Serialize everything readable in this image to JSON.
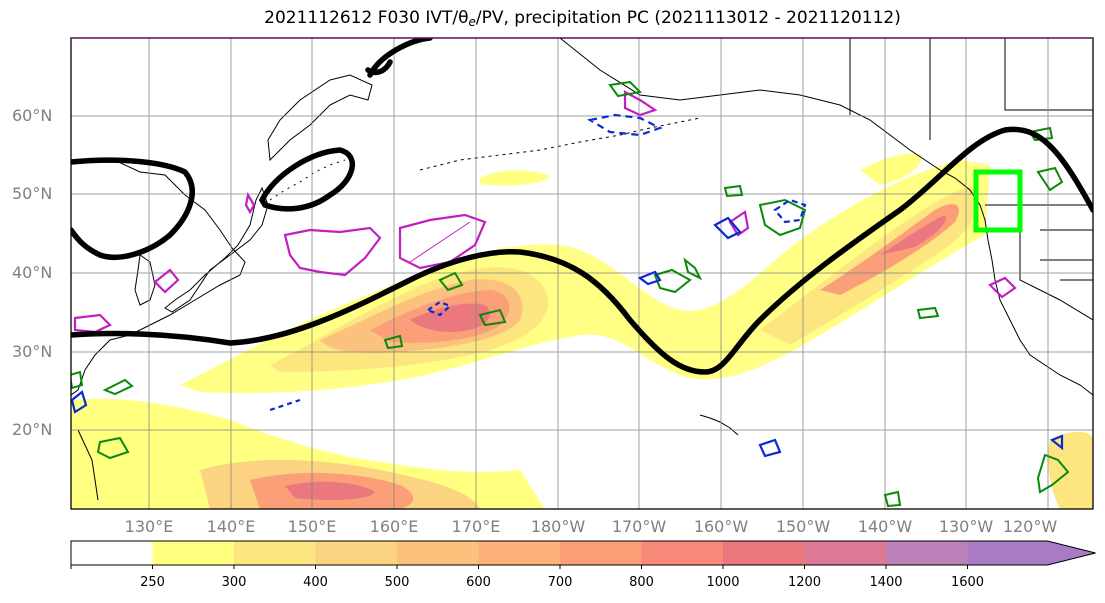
{
  "title": {
    "main": "2021112612 F030 IVT/",
    "theta": "θ",
    "theta_sub": "e",
    "rest": "/PV, precipitation PC (2021113012 - 2021120112)"
  },
  "map": {
    "lat_labels": [
      "60°N",
      "50°N",
      "40°N",
      "30°N",
      "20°N"
    ],
    "lon_labels": [
      "130°E",
      "140°E",
      "150°E",
      "160°E",
      "170°E",
      "180°W",
      "170°W",
      "160°W",
      "150°W",
      "140°W",
      "130°W",
      "120°W"
    ],
    "colors": {
      "jet_contour": "#000000",
      "pv_positive": "#0a8a0a",
      "pv_negative": "#0a2ad4",
      "theta_e": "#c020c0",
      "target_box": "#00ff00"
    }
  },
  "colorbar": {
    "ticks": [
      "250",
      "300",
      "400",
      "500",
      "600",
      "700",
      "800",
      "1000",
      "1200",
      "1400",
      "1600"
    ],
    "colors": [
      "#ffff80",
      "#fde680",
      "#fcd380",
      "#fbc17d",
      "#fcb07a",
      "#fb9f78",
      "#f78a78",
      "#ea787e",
      "#dc7a95",
      "#bc80b8",
      "#a97bc5"
    ]
  }
}
